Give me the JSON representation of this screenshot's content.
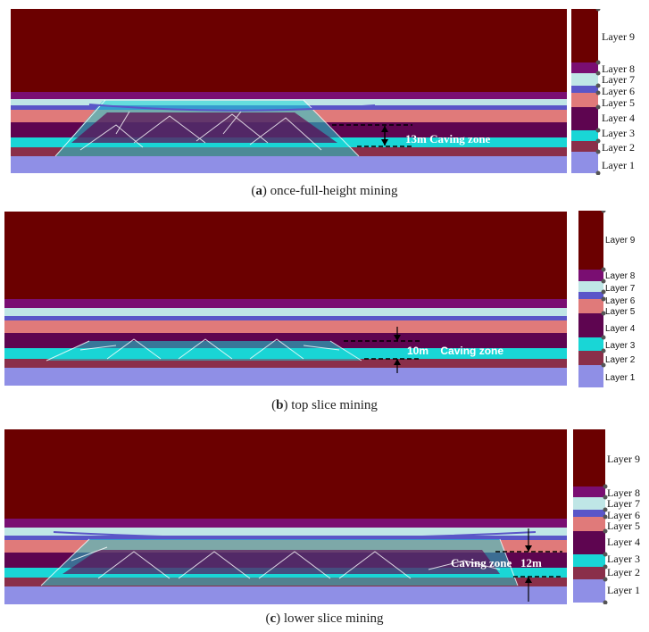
{
  "layer_colors": {
    "layer1": "#8f8fe6",
    "layer2": "#8a2f4a",
    "layer3": "#19d6d6",
    "layer4": "#5e0550",
    "layer5": "#e07a7a",
    "layer6": "#5a56c8",
    "layer7": "#bfe6e6",
    "layer8": "#7a0e72",
    "layer9": "#6b0000"
  },
  "panels": [
    {
      "caption_letter": "a",
      "caption_text": " once-full-height mining",
      "annotation": "13m Caving zone",
      "legend_font": "serif",
      "legend": [
        "Layer 9",
        "Layer 8",
        "Layer 7",
        "Layer 6",
        "Layer 5",
        "Layer 4",
        "Layer 3",
        "Layer 2",
        "Layer 1"
      ]
    },
    {
      "caption_letter": "b",
      "caption_text": " top slice mining",
      "annotation": "10m    Caving zone",
      "legend_font": "sans",
      "legend": [
        "Layer 9",
        "Layer 8",
        "Layer 7",
        "Layer 6",
        "Layer 5",
        "Layer 4",
        "Layer 3",
        "Layer 2",
        "Layer 1"
      ]
    },
    {
      "caption_letter": "c",
      "caption_text": " lower slice mining",
      "annotation": "Caving zone   12m",
      "legend_font": "serif",
      "legend": [
        "Layer 9",
        "Layer 8",
        "Layer 7",
        "Layer 6",
        "Layer 5",
        "Layer 4",
        "Layer 3",
        "Layer 2",
        "Layer 1"
      ]
    }
  ]
}
